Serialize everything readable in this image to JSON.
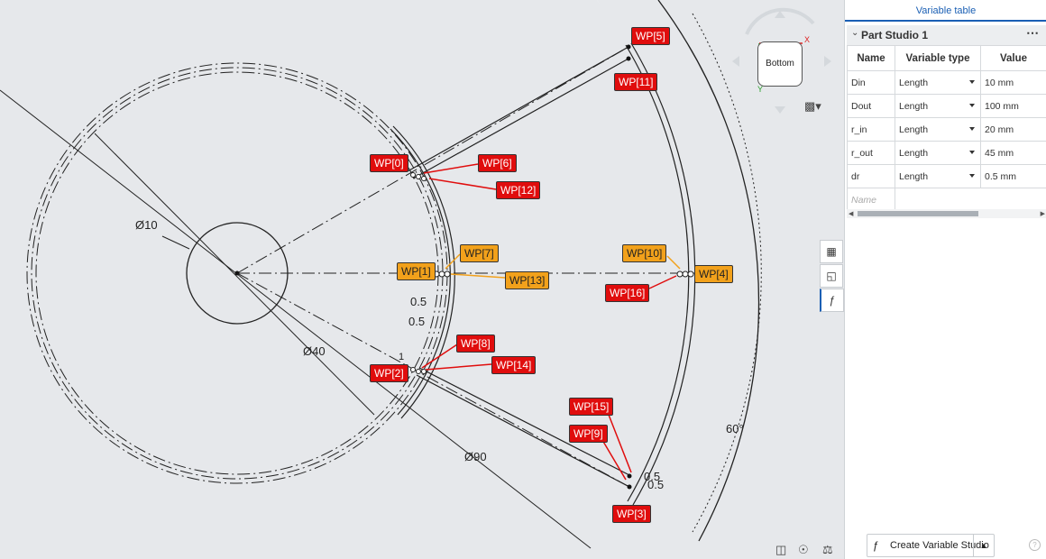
{
  "viewcube": {
    "face": "Bottom",
    "x_axis": "X",
    "y_axis": "Y"
  },
  "dimensions": {
    "d10": "Ø10",
    "d40": "Ø40",
    "d90": "Ø90",
    "gap_a": "0.5",
    "gap_b": "0.5",
    "gap_c": "0.5",
    "gap_d": "0.5",
    "tick_a": "1",
    "tick_b": "1",
    "angle": "60°"
  },
  "work_points": {
    "wp0": "WP[0]",
    "wp1": "WP[1]",
    "wp2": "WP[2]",
    "wp3": "WP[3]",
    "wp4": "WP[4]",
    "wp5": "WP[5]",
    "wp6": "WP[6]",
    "wp7": "WP[7]",
    "wp8": "WP[8]",
    "wp9": "WP[9]",
    "wp10": "WP[10]",
    "wp11": "WP[11]",
    "wp12": "WP[12]",
    "wp13": "WP[13]",
    "wp14": "WP[14]",
    "wp15": "WP[15]",
    "wp16": "WP[16]"
  },
  "colors": {
    "label_red": "#e00d0d",
    "label_orange": "#f2a11b",
    "canvas_bg": "#e6e8eb",
    "accent": "#1a5fb4"
  },
  "panel": {
    "title": "Variable table",
    "studio": "Part Studio 1",
    "columns": [
      "Name",
      "Variable type",
      "Value"
    ],
    "rows": [
      {
        "name": "Din",
        "type": "Length",
        "value": "10 mm"
      },
      {
        "name": "Dout",
        "type": "Length",
        "value": "100 mm"
      },
      {
        "name": "r_in",
        "type": "Length",
        "value": "20 mm"
      },
      {
        "name": "r_out",
        "type": "Length",
        "value": "45 mm"
      },
      {
        "name": "dr",
        "type": "Length",
        "value": "0.5 mm"
      }
    ],
    "name_placeholder": "Name",
    "create_button": "Create Variable Studio"
  }
}
